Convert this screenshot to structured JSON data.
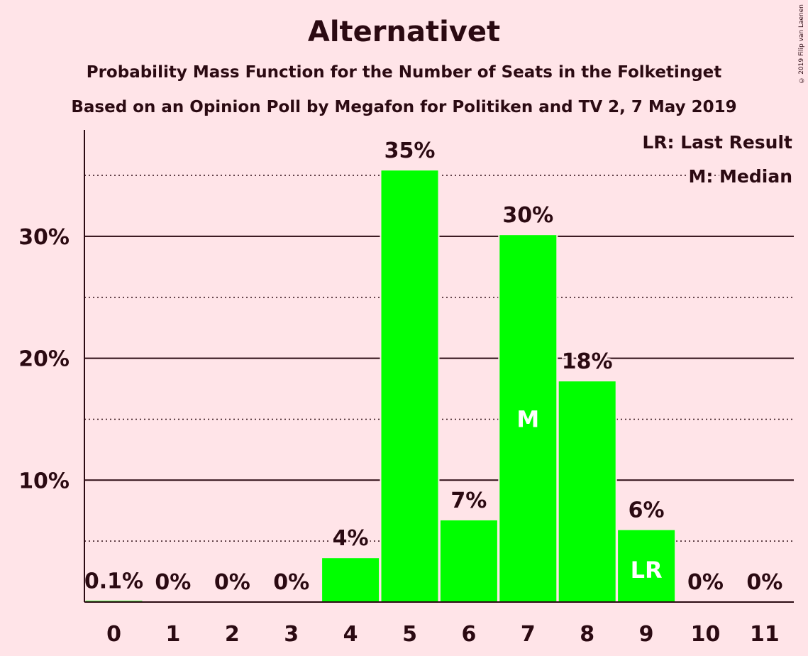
{
  "chart_data": {
    "type": "bar",
    "title": "Alternativet",
    "subtitle": "Probability Mass Function for the Number of Seats in the Folketinget",
    "subtitle2": "Based on an Opinion Poll by Megafon for Politiken and TV 2, 7 May 2019",
    "copyright": "© 2019 Filip van Laenen",
    "categories": [
      "0",
      "1",
      "2",
      "3",
      "4",
      "5",
      "6",
      "7",
      "8",
      "9",
      "10",
      "11"
    ],
    "values": [
      0.1,
      0,
      0,
      0,
      3.6,
      35.4,
      6.7,
      30.1,
      18.1,
      5.9,
      0,
      0
    ],
    "value_labels": [
      "0.1%",
      "0%",
      "0%",
      "0%",
      "4%",
      "35%",
      "7%",
      "30%",
      "18%",
      "6%",
      "0%",
      "0%"
    ],
    "ylim": [
      0,
      38
    ],
    "yticks": [
      10,
      20,
      30
    ],
    "ytick_labels": [
      "10%",
      "20%",
      "30%"
    ],
    "minor_gridlines": [
      5,
      15,
      25,
      35
    ],
    "median_seat": "7",
    "median_marker": "M",
    "last_result_seat": "9",
    "last_result_marker": "LR",
    "legend": [
      "LR: Last Result",
      "M: Median"
    ],
    "legend_position": "top-right",
    "bar_color": "#00ff00",
    "grid": true
  }
}
